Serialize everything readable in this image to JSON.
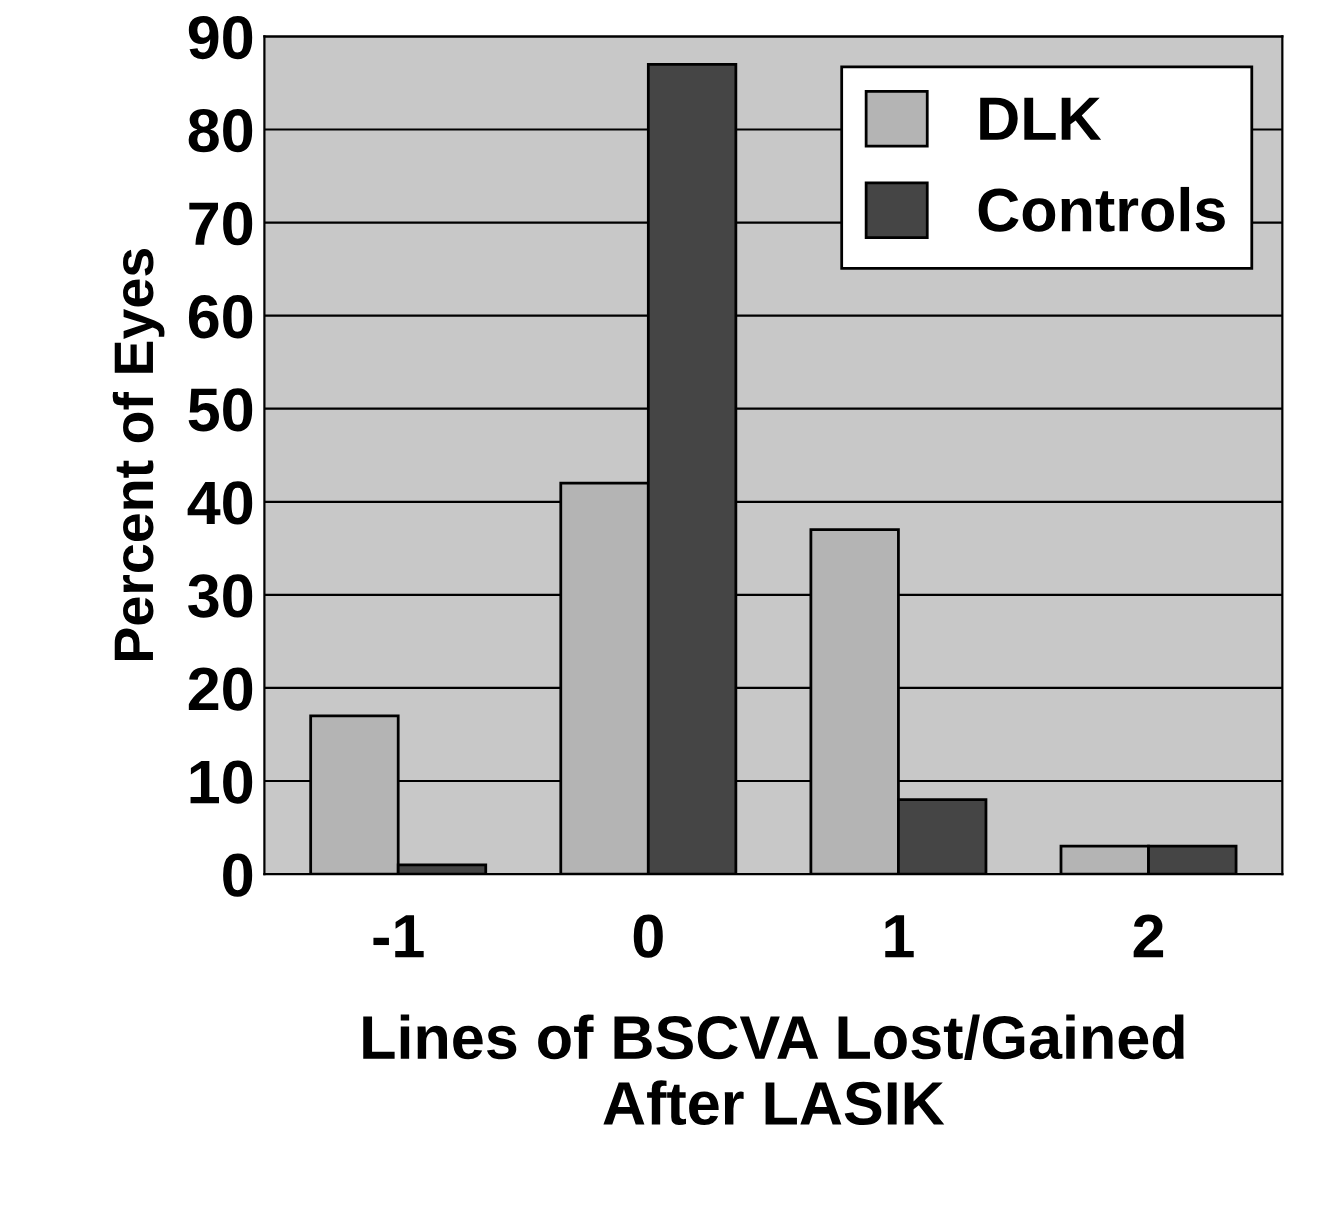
{
  "chart_data": {
    "type": "bar",
    "xlabel": "Lines of BSCVA Lost/Gained\nAfter LASIK",
    "ylabel": "Percent of Eyes",
    "categories": [
      "-1",
      "0",
      "1",
      "2"
    ],
    "series": [
      {
        "name": "DLK",
        "color": "#b4b4b4",
        "values": [
          17,
          42,
          37,
          3
        ]
      },
      {
        "name": "Controls",
        "color": "#454545",
        "values": [
          1,
          87,
          8,
          3
        ]
      }
    ],
    "ylim": [
      0,
      90
    ],
    "yticks": [
      0,
      10,
      20,
      30,
      40,
      50,
      60,
      70,
      80,
      90
    ],
    "grid": "y",
    "legend": "top right"
  }
}
